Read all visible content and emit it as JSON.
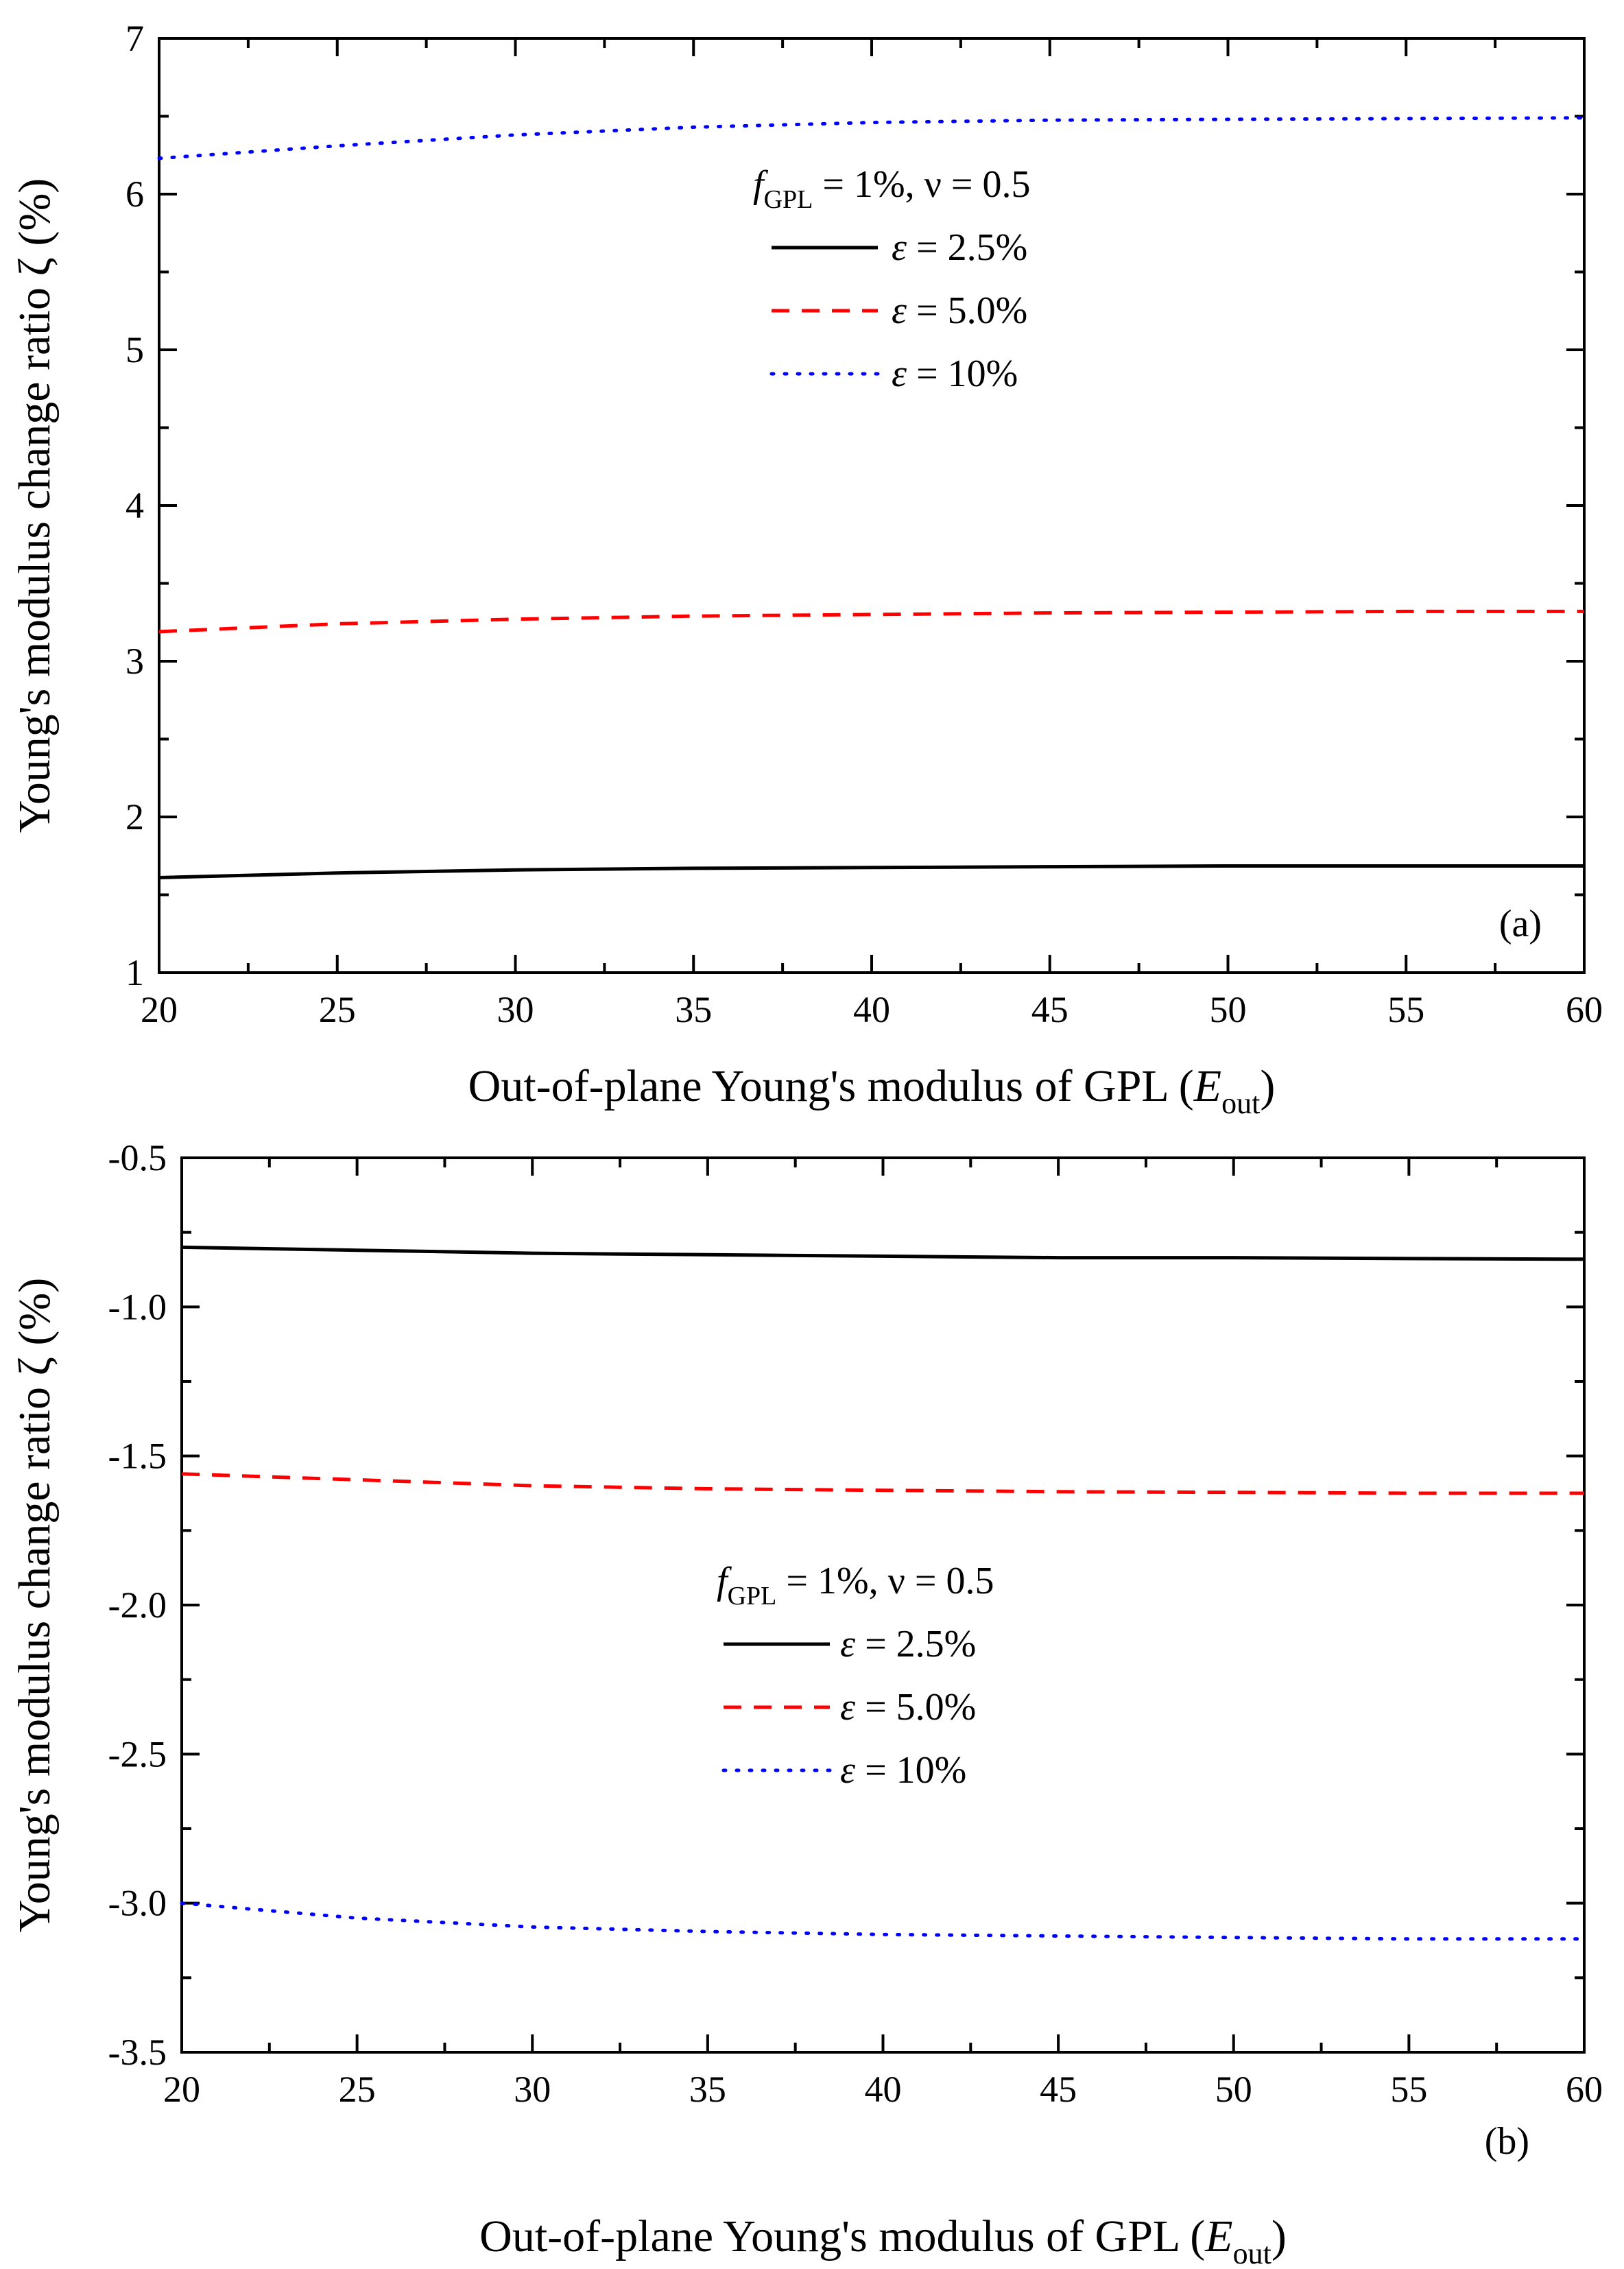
{
  "chart_data": [
    {
      "type": "line",
      "panel_label": "(a)",
      "xlabel_main": "Out-of-plane Young's modulus of GPL (",
      "xlabel_symbol": "E",
      "xlabel_subscript": "out",
      "xlabel_close": ")",
      "ylabel": "Young's modulus change ratio ζ (%)",
      "xlim": [
        20,
        60
      ],
      "ylim": [
        1,
        7
      ],
      "xticks": [
        20,
        25,
        30,
        35,
        40,
        45,
        50,
        55,
        60
      ],
      "yticks": [
        1,
        2,
        3,
        4,
        5,
        6,
        7
      ],
      "xtick_labels": [
        "20",
        "25",
        "30",
        "35",
        "40",
        "45",
        "50",
        "55",
        "60"
      ],
      "ytick_labels": [
        "1",
        "2",
        "3",
        "4",
        "5",
        "6",
        "7"
      ],
      "legend": {
        "title_symbol": "f",
        "title_subscript": "GPL",
        "title_rest": " = 1%, ν = 0.5",
        "placement": "upper-center"
      },
      "x": [
        20,
        25,
        30,
        35,
        40,
        45,
        50,
        55,
        60
      ],
      "series": [
        {
          "name": "ε = 2.5%",
          "symbol": "ε",
          "label_rest": " = 2.5%",
          "color": "#000000",
          "style": "solid",
          "values": [
            1.61,
            1.64,
            1.66,
            1.67,
            1.675,
            1.68,
            1.685,
            1.685,
            1.685
          ]
        },
        {
          "name": "ε = 5.0%",
          "symbol": "ε",
          "label_rest": " = 5.0%",
          "color": "#ff0000",
          "style": "dashed",
          "values": [
            3.19,
            3.24,
            3.27,
            3.29,
            3.3,
            3.31,
            3.315,
            3.32,
            3.32
          ]
        },
        {
          "name": "ε = 10%",
          "symbol": "ε",
          "label_rest": " = 10%",
          "color": "#0000ff",
          "style": "dotted",
          "values": [
            6.23,
            6.31,
            6.38,
            6.43,
            6.46,
            6.475,
            6.48,
            6.485,
            6.49
          ]
        }
      ]
    },
    {
      "type": "line",
      "panel_label": "(b)",
      "xlabel_main": "Out-of-plane Young's modulus of GPL (",
      "xlabel_symbol": "E",
      "xlabel_subscript": "out",
      "xlabel_close": ")",
      "ylabel": "Young's modulus change ratio ζ (%)",
      "xlim": [
        20,
        60
      ],
      "ylim": [
        -3.5,
        -0.5
      ],
      "xticks": [
        20,
        25,
        30,
        35,
        40,
        45,
        50,
        55,
        60
      ],
      "yticks": [
        -3.5,
        -3.0,
        -2.5,
        -2.0,
        -1.5,
        -1.0,
        -0.5
      ],
      "xtick_labels": [
        "20",
        "25",
        "30",
        "35",
        "40",
        "45",
        "50",
        "55",
        "60"
      ],
      "ytick_labels": [
        "-3.5",
        "-3.0",
        "-2.5",
        "-2.0",
        "-1.5",
        "-1.0",
        "-0.5"
      ],
      "legend": {
        "title_symbol": "f",
        "title_subscript": "GPL",
        "title_rest": " = 1%, ν = 0.5",
        "placement": "center"
      },
      "x": [
        20,
        25,
        30,
        35,
        40,
        45,
        50,
        55,
        60
      ],
      "series": [
        {
          "name": "ε = 2.5%",
          "symbol": "ε",
          "label_rest": " = 2.5%",
          "color": "#000000",
          "style": "solid",
          "values": [
            -0.8,
            -0.81,
            -0.82,
            -0.825,
            -0.83,
            -0.835,
            -0.835,
            -0.838,
            -0.84
          ]
        },
        {
          "name": "ε = 5.0%",
          "symbol": "ε",
          "label_rest": " = 5.0%",
          "color": "#ff0000",
          "style": "dashed",
          "values": [
            -1.56,
            -1.58,
            -1.6,
            -1.61,
            -1.615,
            -1.62,
            -1.622,
            -1.625,
            -1.625
          ]
        },
        {
          "name": "ε = 10%",
          "symbol": "ε",
          "label_rest": " = 10%",
          "color": "#0000ff",
          "style": "dotted",
          "values": [
            -3.0,
            -3.05,
            -3.08,
            -3.095,
            -3.105,
            -3.11,
            -3.115,
            -3.12,
            -3.12
          ]
        }
      ]
    }
  ]
}
